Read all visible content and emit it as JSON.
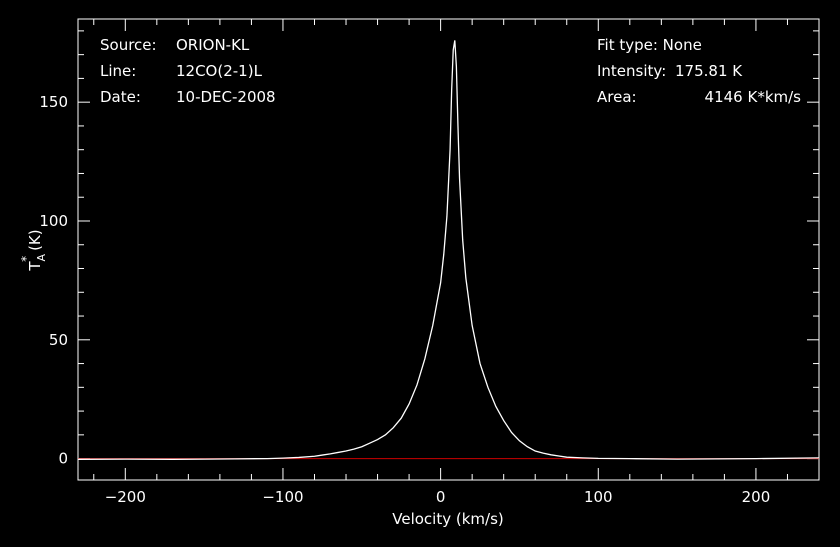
{
  "header": {
    "source_label": "Source:",
    "source_value": "ORION-KL",
    "line_label": "Line:",
    "line_value": "12CO(2-1)L",
    "date_label": "Date:",
    "date_value": "10-DEC-2008",
    "fit_type": "Fit type: None",
    "intensity_label": "Intensity:",
    "intensity_value": "175.81 K",
    "area_label": "Area:",
    "area_value": "4146 K*km/s"
  },
  "chart_data": {
    "type": "line",
    "xlabel": "Velocity (km/s)",
    "ylabel_main": "T",
    "ylabel_sup": "*",
    "ylabel_sub": "A",
    "ylabel_unit": "(K)",
    "xlim": [
      -230,
      240
    ],
    "ylim": [
      -9,
      185
    ],
    "x_ticks": [
      -200,
      -100,
      0,
      100,
      200
    ],
    "x_tick_labels": [
      "−200",
      "−100",
      "0",
      "100",
      "200"
    ],
    "y_ticks": [
      0,
      50,
      100,
      150
    ],
    "y_tick_labels": [
      "0",
      "50",
      "100",
      "150"
    ],
    "baseline_value": 0,
    "series": [
      {
        "x": [
          -230,
          -200,
          -170,
          -150,
          -130,
          -110,
          -100,
          -90,
          -80,
          -75,
          -70,
          -65,
          -60,
          -55,
          -50,
          -45,
          -40,
          -35,
          -30,
          -25,
          -20,
          -15,
          -10,
          -5,
          0,
          2,
          4,
          6,
          7,
          8,
          9,
          10,
          11,
          12,
          14,
          16,
          20,
          25,
          30,
          35,
          40,
          45,
          50,
          55,
          60,
          65,
          70,
          75,
          80,
          90,
          100,
          120,
          150,
          200,
          240
        ],
        "y": [
          -0.3,
          -0.2,
          -0.3,
          -0.2,
          -0.1,
          0,
          0.2,
          0.5,
          1,
          1.5,
          2,
          2.6,
          3.2,
          4,
          5,
          6.5,
          8,
          10,
          13,
          17,
          23,
          31,
          42,
          56,
          74,
          86,
          102,
          130,
          155,
          172,
          176,
          165,
          140,
          118,
          92,
          76,
          56,
          40,
          30,
          22,
          16,
          11,
          7.5,
          5,
          3.2,
          2.3,
          1.6,
          1.1,
          0.6,
          0.3,
          0.1,
          0,
          -0.2,
          0,
          0.3
        ],
        "color": "#ffffff"
      }
    ],
    "baseline_color": "#cc0000",
    "axis_color": "#ffffff",
    "background": "#000000",
    "grid": false
  }
}
